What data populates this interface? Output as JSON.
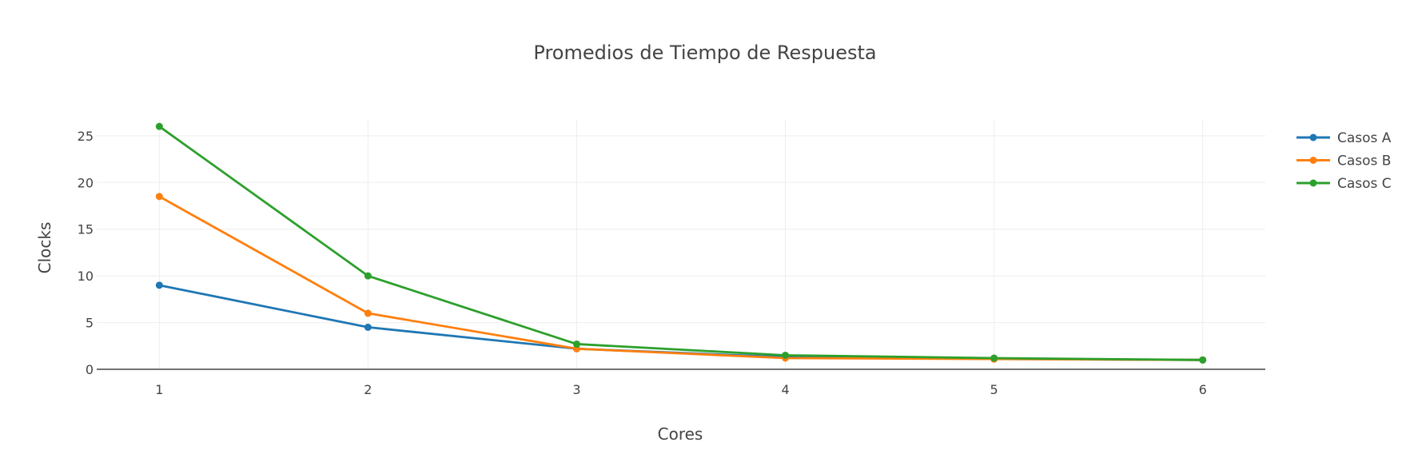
{
  "chart_data": {
    "type": "line",
    "title": "Promedios de Tiempo de Respuesta",
    "xlabel": "Cores",
    "ylabel": "Clocks",
    "x": [
      1,
      2,
      3,
      4,
      5,
      6
    ],
    "xticks": [
      1,
      2,
      3,
      4,
      5,
      6
    ],
    "yticks": [
      0,
      5,
      10,
      15,
      20,
      25
    ],
    "xlim": [
      0.7,
      6.3
    ],
    "ylim": [
      0,
      26.7
    ],
    "grid": true,
    "legend_position": "top-right",
    "series": [
      {
        "name": "Casos A",
        "color": "#1f77b4",
        "values": [
          9.0,
          4.5,
          2.2,
          1.3,
          1.1,
          1.0
        ]
      },
      {
        "name": "Casos B",
        "color": "#ff7f0e",
        "values": [
          18.5,
          6.0,
          2.2,
          1.2,
          1.1,
          1.0
        ]
      },
      {
        "name": "Casos C",
        "color": "#2ca02c",
        "values": [
          26.0,
          10.0,
          2.7,
          1.5,
          1.2,
          1.0
        ]
      }
    ]
  }
}
